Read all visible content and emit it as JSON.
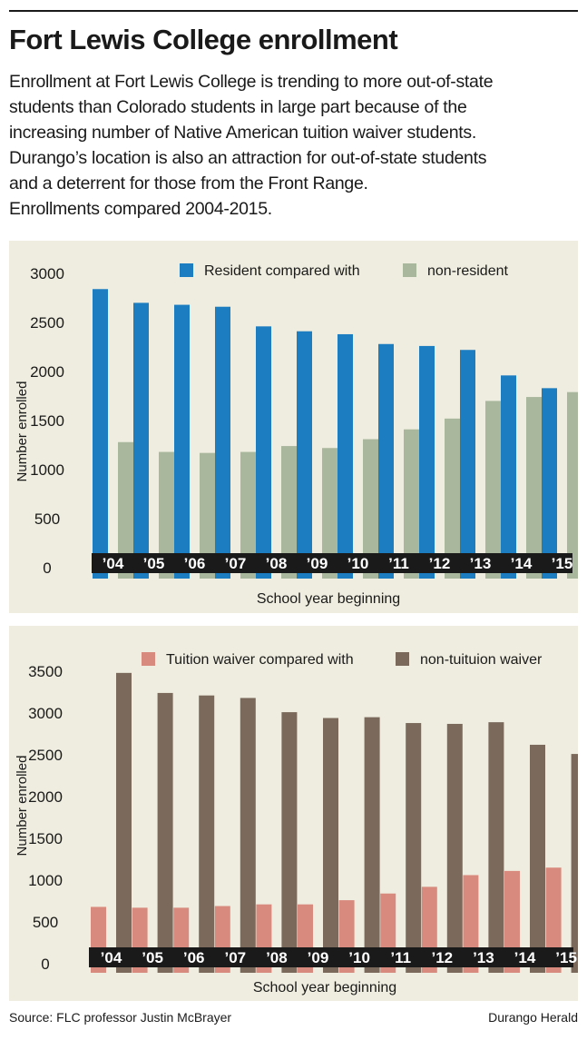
{
  "header": {
    "title": "Fort Lewis College enrollment",
    "description_lines": [
      "Enrollment at Fort Lewis College is trending to more out-of-state",
      "students than Colorado students in large part because of the",
      "increasing number of Native American tuition waiver students.",
      "Durango’s location is also an attraction for out-of-state students",
      "and a deterrent for those from the Front Range.",
      "Enrollments compared 2004-2015."
    ]
  },
  "chart_data": [
    {
      "type": "bar",
      "categories": [
        "’04",
        "’05",
        "’06",
        "’07",
        "’08",
        "’09",
        "’10",
        "’11",
        "’12",
        "’13",
        "’14",
        "’15"
      ],
      "series": [
        {
          "name": "Resident compared with",
          "color": "#1d7dc1",
          "values": [
            2840,
            2700,
            2680,
            2660,
            2460,
            2410,
            2380,
            2280,
            2260,
            2220,
            1960,
            1830
          ]
        },
        {
          "name": "non-resident",
          "color": "#a9b79d",
          "values": [
            1280,
            1180,
            1170,
            1180,
            1240,
            1220,
            1310,
            1410,
            1520,
            1700,
            1740,
            1790
          ]
        }
      ],
      "xlabel": "School year beginning",
      "ylabel": "Number enrolled",
      "yticks": [
        0,
        500,
        1000,
        1500,
        2000,
        2500,
        3000
      ],
      "ylim": [
        0,
        3000
      ],
      "legend": "top",
      "grid": false
    },
    {
      "type": "bar",
      "categories": [
        "’04",
        "’05",
        "’06",
        "’07",
        "’08",
        "’09",
        "’10",
        "’11",
        "’12",
        "’13",
        "’14",
        "’15"
      ],
      "series": [
        {
          "name": "Tuition waiver compared with",
          "color": "#d98a7e",
          "values": [
            680,
            670,
            670,
            690,
            710,
            710,
            760,
            840,
            920,
            1060,
            1110,
            1150
          ]
        },
        {
          "name": "non-tuituion waiver",
          "color": "#7b6a5c",
          "values": [
            3480,
            3240,
            3210,
            3180,
            3010,
            2940,
            2950,
            2880,
            2870,
            2890,
            2620,
            2510
          ]
        }
      ],
      "xlabel": "School year beginning",
      "ylabel": "Number enrolled",
      "yticks": [
        0,
        500,
        1000,
        1500,
        2000,
        2500,
        3000,
        3500
      ],
      "ylim": [
        0,
        3500
      ],
      "legend": "top",
      "grid": false
    }
  ],
  "footer": {
    "source": "Source: FLC professor Justin McBrayer",
    "credit": "Durango Herald"
  }
}
